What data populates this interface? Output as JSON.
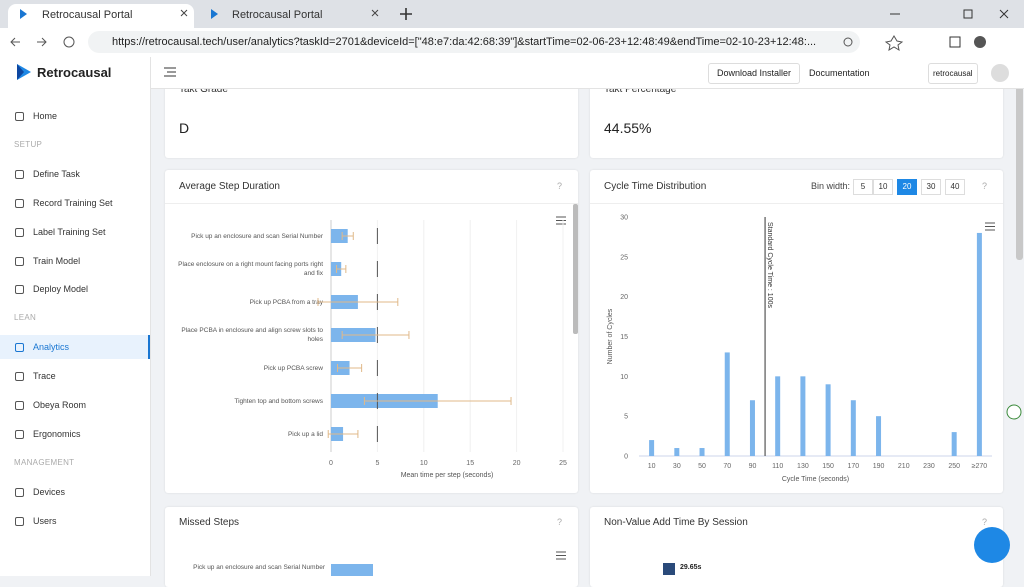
{
  "browser": {
    "tabs": [
      "Retrocausal Portal",
      "Retrocausal Portal"
    ],
    "url": "https://retrocausal.tech/user/analytics?taskId=2701&deviceId=[\"48:e7:da:42:68:39\"]&startTime=02-06-23+12:48:49&endTime=02-10-23+12:48:..."
  },
  "app": {
    "brand": "Retrocausal",
    "header_buttons": [
      "Download Installer",
      "Documentation"
    ],
    "account": "retrocausal",
    "help": "?"
  },
  "sidebar": [
    {
      "label": "Home",
      "kind": "item"
    },
    {
      "label": "SETUP",
      "kind": "section"
    },
    {
      "label": "Define Task",
      "kind": "item"
    },
    {
      "label": "Record Training Set",
      "kind": "item"
    },
    {
      "label": "Label Training Set",
      "kind": "item"
    },
    {
      "label": "Train Model",
      "kind": "item"
    },
    {
      "label": "Deploy Model",
      "kind": "item"
    },
    {
      "label": "LEAN",
      "kind": "section"
    },
    {
      "label": "Analytics",
      "kind": "active"
    },
    {
      "label": "Trace",
      "kind": "item"
    },
    {
      "label": "Obeya Room",
      "kind": "item"
    },
    {
      "label": "Ergonomics",
      "kind": "item"
    },
    {
      "label": "MANAGEMENT",
      "kind": "section"
    },
    {
      "label": "Devices",
      "kind": "item"
    },
    {
      "label": "Users",
      "kind": "item"
    }
  ],
  "cards": {
    "takt_grade": {
      "title": "Takt Grade",
      "value": "D"
    },
    "takt_percentage": {
      "title": "Takt Percentage",
      "value": "44.55%"
    },
    "missed_steps": {
      "title": "Missed Steps",
      "label": "Pick up an enclosure and scan Serial Number"
    },
    "non_value": {
      "title": "Non-Value Add Time By Session",
      "label": "29.65s"
    }
  },
  "chart_data": [
    {
      "type": "hbar",
      "title": "Average Step Duration",
      "categories": [
        "Pick up an enclosure and scan Serial Number",
        "Place enclosure on a right mount facing ports right and fix",
        "Pick up PCBA from a tray",
        "Place PCBA in enclosure and align screw slots to holes",
        "Pick up PCBA screw",
        "Tighten top and bottom screws",
        "Pick up a lid"
      ],
      "values": [
        1.8,
        1.1,
        2.9,
        4.8,
        2.0,
        11.5,
        1.3
      ],
      "errors": [
        0.6,
        0.5,
        4.3,
        3.6,
        1.3,
        7.9,
        1.6
      ],
      "color": "#7cb5ec",
      "error_color": "#e0b98a",
      "target_line": 5,
      "xlim": [
        0,
        25
      ],
      "xticks": [
        0,
        5,
        10,
        15,
        20,
        25
      ],
      "xlabel": "Mean time per step (seconds)"
    },
    {
      "type": "bar",
      "title": "Cycle Time Distribution",
      "controls_label": "Bin width:",
      "bin_widths": [
        5,
        10,
        20,
        30,
        40
      ],
      "selected_bin_width": 20,
      "categories": [
        "10",
        "30",
        "50",
        "70",
        "90",
        "110",
        "130",
        "150",
        "170",
        "190",
        "210",
        "230",
        "250",
        "≥270"
      ],
      "values": [
        2,
        1,
        1,
        13,
        7,
        10,
        10,
        9,
        7,
        5,
        0,
        0,
        3,
        28
      ],
      "color": "#7cb5ec",
      "ylim": [
        0,
        30
      ],
      "yticks": [
        0,
        5,
        10,
        15,
        20,
        25,
        30
      ],
      "ylabel": "Number of Cycles",
      "xlabel": "Cycle Time (seconds)",
      "annotation": {
        "label": "Standard Cycle Time : 100s",
        "value": 100
      }
    }
  ]
}
